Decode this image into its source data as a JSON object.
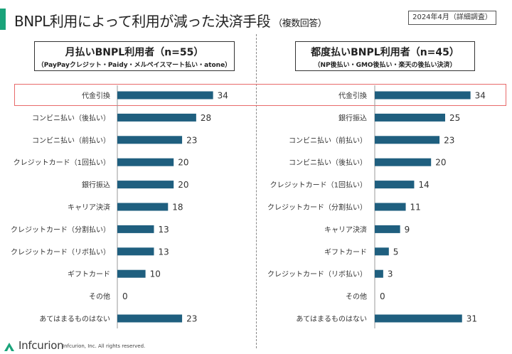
{
  "header": {
    "title": "BNPL利用によって利用が減った決済手段",
    "title_sub": "（複数回答）",
    "date_badge": "2024年4月（詳細調査）"
  },
  "colors": {
    "bar": "#1f5f7f",
    "accent": "#1aa37a",
    "highlight": "#e86b6b"
  },
  "footer": {
    "brand": "Infcurion",
    "copyright": "Infcurion, Inc.  All rights reserved."
  },
  "chart_data": [
    {
      "type": "bar",
      "orientation": "horizontal",
      "title": "月払いBNPL利用者（n=55）",
      "subtitle": "（PayPayクレジット・Paidy・メルペイスマート払い・atone）",
      "categories": [
        "代金引換",
        "コンビニ払い（後払い）",
        "コンビニ払い（前払い）",
        "クレジットカード（1回払い）",
        "銀行振込",
        "キャリア決済",
        "クレジットカード（分割払い）",
        "クレジットカード（リボ払い）",
        "ギフトカード",
        "その他",
        "あてはまるものはない"
      ],
      "values": [
        34,
        28,
        23,
        20,
        20,
        18,
        13,
        13,
        10,
        0,
        23
      ],
      "xlim": [
        0,
        100
      ]
    },
    {
      "type": "bar",
      "orientation": "horizontal",
      "title": "都度払いBNPL利用者（n=45）",
      "subtitle": "（NP後払い・GMO後払い・楽天の後払い決済）",
      "categories": [
        "代金引換",
        "銀行振込",
        "コンビニ払い（前払い）",
        "コンビニ払い（後払い）",
        "クレジットカード（1回払い）",
        "クレジットカード（分割払い）",
        "キャリア決済",
        "ギフトカード",
        "クレジットカード（リボ払い）",
        "その他",
        "あてはまるものはない"
      ],
      "values": [
        34,
        25,
        23,
        20,
        14,
        11,
        9,
        5,
        3,
        0,
        31
      ],
      "xlim": [
        0,
        100
      ]
    }
  ]
}
